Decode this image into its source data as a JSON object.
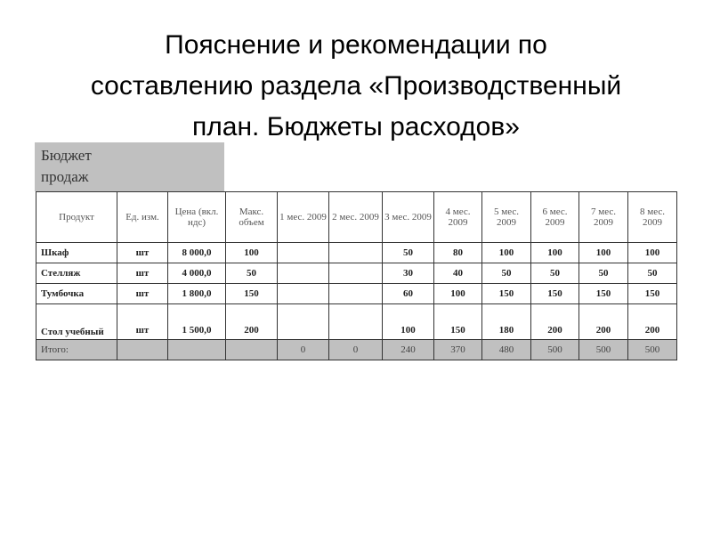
{
  "title": [
    "Пояснение и рекомендации по",
    "составлению раздела «Производственный",
    "план. Бюджеты расходов»"
  ],
  "caption": [
    "Бюджет",
    "продаж"
  ],
  "headers": [
    "Продукт",
    "Ед. изм.",
    "Цена (вкл. ндс)",
    "Макс. объем",
    "1 мес. 2009",
    "2 мес. 2009",
    "3 мес. 2009",
    "4 мес. 2009",
    "5 мес. 2009",
    "6 мес. 2009",
    "7 мес. 2009",
    "8 мес. 2009"
  ],
  "rows": [
    [
      "Шкаф",
      "шт",
      "8 000,0",
      "100",
      "",
      "",
      "50",
      "80",
      "100",
      "100",
      "100",
      "100"
    ],
    [
      "Стелляж",
      "шт",
      "4 000,0",
      "50",
      "",
      "",
      "30",
      "40",
      "50",
      "50",
      "50",
      "50"
    ],
    [
      "Тумбочка",
      "шт",
      "1 800,0",
      "150",
      "",
      "",
      "60",
      "100",
      "150",
      "150",
      "150",
      "150"
    ],
    [
      "Стол учебный",
      "шт",
      "1 500,0",
      "200",
      "",
      "",
      "100",
      "150",
      "180",
      "200",
      "200",
      "200"
    ]
  ],
  "total": [
    "Итого:",
    "",
    "",
    "",
    "0",
    "0",
    "240",
    "370",
    "480",
    "500",
    "500",
    "500"
  ]
}
